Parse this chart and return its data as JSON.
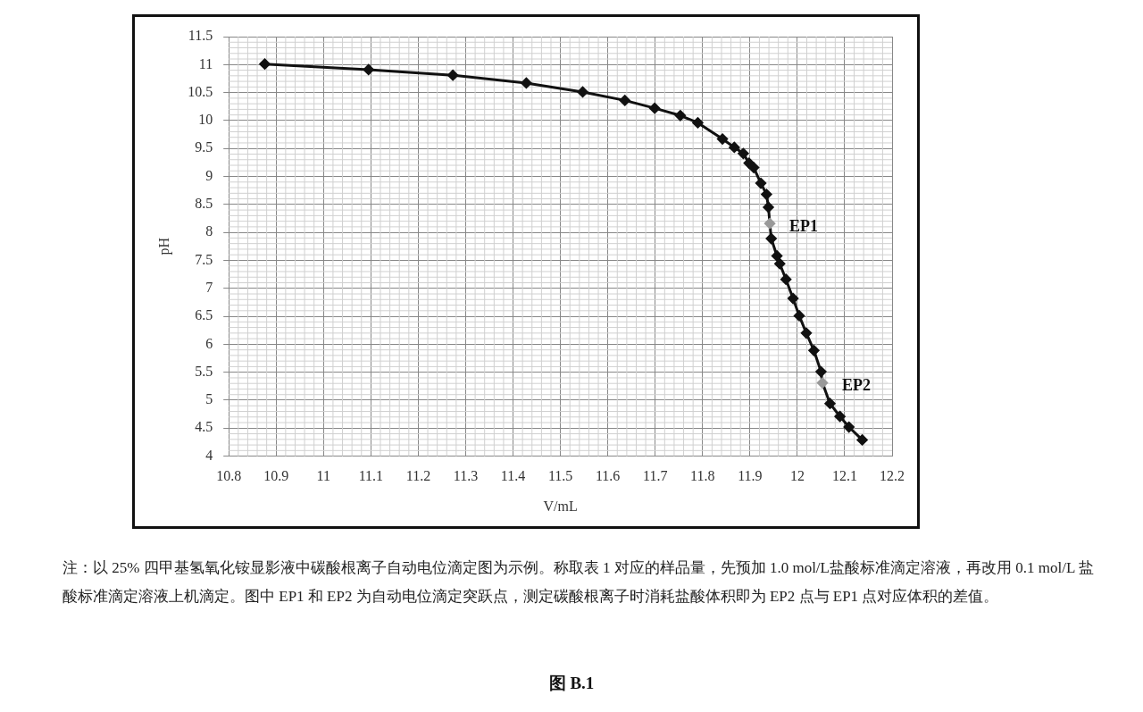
{
  "chart_data": {
    "type": "line",
    "xlabel": "V/mL",
    "ylabel": "pH",
    "xlim": [
      10.8,
      12.2
    ],
    "xticks": [
      10.8,
      10.9,
      11,
      11.1,
      11.2,
      11.3,
      11.4,
      11.5,
      11.6,
      11.7,
      11.8,
      11.9,
      12,
      12.1,
      12.2
    ],
    "ylim": [
      4,
      11.5
    ],
    "yticks": [
      4,
      4.5,
      5,
      5.5,
      6,
      6.5,
      7,
      7.5,
      8,
      8.5,
      9,
      9.5,
      10,
      10.5,
      11,
      11.5
    ],
    "grid": true,
    "legend": false,
    "marker": "diamond",
    "line_style": "solid",
    "series": [
      {
        "color": "#111111",
        "x": [
          10.876,
          11.095,
          11.273,
          11.428,
          11.547,
          11.636,
          11.699,
          11.753,
          11.79,
          11.842,
          11.867,
          11.886,
          11.898,
          11.908,
          11.923,
          11.935,
          11.939,
          11.942,
          11.945,
          11.957,
          11.963,
          11.976,
          11.991,
          12.004,
          12.019,
          12.035,
          12.05,
          12.053,
          12.069,
          12.09,
          12.109,
          12.137
        ],
        "values": [
          11.01,
          10.91,
          10.81,
          10.67,
          10.51,
          10.36,
          10.22,
          10.09,
          9.96,
          9.67,
          9.52,
          9.41,
          9.24,
          9.16,
          8.88,
          8.68,
          8.45,
          8.16,
          7.89,
          7.58,
          7.44,
          7.16,
          6.82,
          6.51,
          6.2,
          5.89,
          5.51,
          5.31,
          4.94,
          4.71,
          4.52,
          4.29
        ],
        "colors": [
          "#111111",
          "#111111",
          "#111111",
          "#111111",
          "#111111",
          "#111111",
          "#111111",
          "#111111",
          "#111111",
          "#111111",
          "#111111",
          "#111111",
          "#111111",
          "#111111",
          "#111111",
          "#111111",
          "#111111",
          "#999999",
          "#111111",
          "#111111",
          "#111111",
          "#111111",
          "#111111",
          "#111111",
          "#111111",
          "#111111",
          "#111111",
          "#999999",
          "#111111",
          "#111111",
          "#111111",
          "#111111"
        ]
      }
    ],
    "annotations": [
      {
        "text": "EP1",
        "x": 11.942,
        "y": 8.16
      },
      {
        "text": "EP2",
        "x": 12.053,
        "y": 5.31
      },
      "注：以 25% 四甲基氢氧化铵显影液中碳酸根离子自动电位滴定图为示例。称取表 1 对应的样品量，先预加 1.0 mol/L盐酸标准滴定溶液，再改用 0.1 mol/L 盐酸标准滴定溶液上机滴定。图中 EP1 和 EP2 为自动电位滴定突跃点，测定碳酸根离子时消耗盐酸体积即为 EP2 点与 EP1 点对应体积的差值。",
      "图 B.1"
    ]
  }
}
